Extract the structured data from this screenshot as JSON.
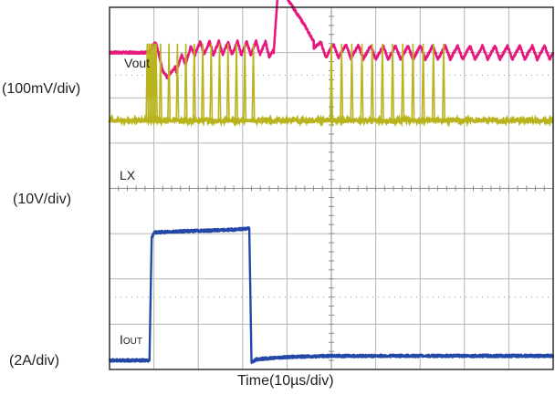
{
  "chart_data": {
    "type": "line",
    "title": "",
    "xlabel": "Time(10µs/div)",
    "grid": true,
    "divisions": {
      "x": 10,
      "y": 8
    },
    "x_unit": "µs",
    "x_range": [
      0,
      100
    ],
    "colors": {
      "vout": "#e6187d",
      "lx": "#b9b41e",
      "iout": "#2448a8",
      "grid": "#b4b4b4",
      "frame": "#231f20"
    },
    "series": [
      {
        "name": "Vout",
        "scale_label": "(100mV/div)",
        "unit": "mV",
        "baseline_mV": 0,
        "points": [
          [
            0,
            0
          ],
          [
            9,
            0
          ],
          [
            10,
            20
          ],
          [
            10.5,
            20
          ],
          [
            12,
            -40
          ],
          [
            13,
            -55
          ],
          [
            15,
            -30
          ],
          [
            19.5,
            10
          ],
          [
            35,
            10
          ],
          [
            37,
            0
          ],
          [
            38,
            140
          ],
          [
            40,
            120
          ],
          [
            44,
            60
          ],
          [
            46,
            25
          ],
          [
            48,
            5
          ],
          [
            60,
            0
          ],
          [
            100,
            0
          ]
        ],
        "ripple": [
          {
            "x_start": 15,
            "x_end": 37,
            "amplitude_mV": 30,
            "period_us": 2.1
          },
          {
            "x_start": 46,
            "x_end": 100,
            "amplitude_mV": 30,
            "period_us": 2.8
          }
        ]
      },
      {
        "name": "LX",
        "scale_label": "(10V/div)",
        "unit": "V",
        "baseline_V": 0,
        "pulse_height_V": 17,
        "pulse_times": [
          8.5,
          8.9,
          9.3,
          9.7,
          10.1,
          10.5,
          11.5,
          13.4,
          15.3,
          17.2,
          19.1,
          21.0,
          22.9,
          24.8,
          26.7,
          28.6,
          30.5,
          32.4,
          50.0,
          52.3,
          54.6,
          56.9,
          59.2,
          61.5,
          63.8,
          66.1,
          68.4,
          70.7,
          73.0,
          75.3
        ]
      },
      {
        "name": "IOUT",
        "scale_label": "(2A/div)",
        "unit": "A",
        "points": [
          [
            0,
            0.1
          ],
          [
            9,
            0.1
          ],
          [
            9.5,
            5.5
          ],
          [
            10,
            5.75
          ],
          [
            15,
            5.8
          ],
          [
            25,
            5.85
          ],
          [
            30,
            5.9
          ],
          [
            31.5,
            5.95
          ],
          [
            32,
            0
          ],
          [
            33,
            0.15
          ],
          [
            40,
            0.25
          ],
          [
            50,
            0.3
          ],
          [
            60,
            0.3
          ],
          [
            70,
            0.3
          ],
          [
            80,
            0.3
          ],
          [
            100,
            0.3
          ]
        ]
      }
    ]
  }
}
